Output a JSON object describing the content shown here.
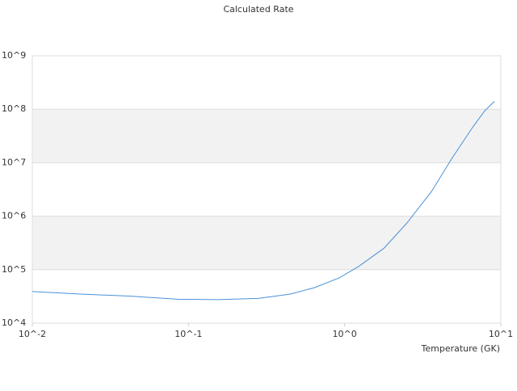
{
  "chart_data": {
    "type": "line",
    "title": "Calculated Rate",
    "xlabel": "Temperature (GK)",
    "x": [
      0.01,
      0.0204,
      0.0417,
      0.085,
      0.155,
      0.28,
      0.45,
      0.64,
      0.92,
      1.23,
      1.78,
      2.5,
      3.6,
      4.9,
      6.6,
      7.9,
      9.1
    ],
    "values": [
      39000,
      35000,
      32000,
      28000,
      27500,
      29000,
      35000,
      46000,
      70000,
      115000,
      250000,
      740000,
      2900000,
      12500000,
      46000000,
      94000000,
      140000000
    ],
    "color": "#4a90d9",
    "xlog": true,
    "ylog": true,
    "xlim": [
      0.01,
      10
    ],
    "ylim": [
      10000,
      1000000000
    ],
    "xticks": [
      {
        "value": 0.01,
        "label": "10^-2"
      },
      {
        "value": 0.1,
        "label": "10^-1"
      },
      {
        "value": 1,
        "label": "10^0"
      },
      {
        "value": 10,
        "label": "10^1"
      }
    ],
    "yticks": [
      {
        "value": 10000,
        "label": "10^4"
      },
      {
        "value": 100000,
        "label": "10^5"
      },
      {
        "value": 1000000,
        "label": "10^6"
      },
      {
        "value": 10000000,
        "label": "10^7"
      },
      {
        "value": 100000000,
        "label": "10^8"
      },
      {
        "value": 1000000000,
        "label": "10^9"
      }
    ],
    "grid": true,
    "band_color": "#f2f2f2"
  }
}
